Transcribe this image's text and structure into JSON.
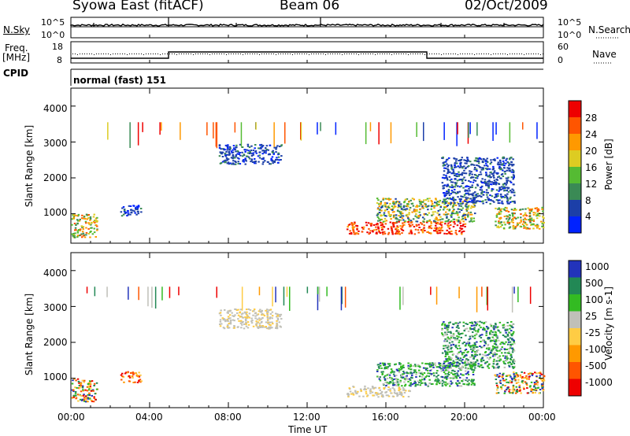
{
  "header": {
    "station": "Syowa East (fitACF)",
    "beam": "Beam 06",
    "date": "02/Oct/2009"
  },
  "noise_panel": {
    "left_label": "N.Sky",
    "right_label": "N.Search",
    "left_ticks": [
      "10^5",
      "10^0"
    ],
    "right_ticks": [
      "10^5",
      "10^0"
    ]
  },
  "freq_panel": {
    "left_label_line1": "Freq.",
    "left_label_line2": "[MHz]",
    "right_label": "Nave",
    "left_ticks": [
      "18",
      "8"
    ],
    "right_ticks": [
      "60",
      "0"
    ]
  },
  "cpid": {
    "label": "CPID",
    "mode": "normal (fast) 151"
  },
  "x_axis": {
    "label": "Time UT",
    "ticks": [
      "00:00",
      "04:00",
      "08:00",
      "12:00",
      "16:00",
      "20:00",
      "00:00"
    ]
  },
  "colors": {
    "power_scale": [
      "#0022ff",
      "#1c3fa8",
      "#3a8a55",
      "#55bb33",
      "#ddcc22",
      "#ff9900",
      "#ff5500",
      "#ee0000"
    ],
    "velocity_scale": [
      "#ee0000",
      "#ff5500",
      "#ff9900",
      "#ffcc44",
      "#c0c0b8",
      "#33bb22",
      "#228855",
      "#2233bb"
    ]
  },
  "chart_data": [
    {
      "type": "heatmap",
      "name": "power",
      "ylabel": "Slant Range [km]",
      "yticks": [
        "1000",
        "2000",
        "3000",
        "4000"
      ],
      "ylim": [
        180,
        4500
      ],
      "xlim": [
        0,
        24
      ],
      "colorbar": {
        "label": "Power [dB]",
        "ticks": [
          "4",
          "8",
          "12",
          "16",
          "20",
          "24",
          "28"
        ],
        "range": [
          0,
          32
        ]
      },
      "echo_regions": [
        {
          "t0": 0.0,
          "t1": 1.3,
          "r0": 350,
          "r1": 1000,
          "level": "mixed"
        },
        {
          "t0": 2.5,
          "t1": 3.6,
          "r0": 950,
          "r1": 1250,
          "level": "low"
        },
        {
          "t0": 7.5,
          "t1": 10.7,
          "r0": 2400,
          "r1": 2950,
          "level": "low"
        },
        {
          "t0": 14.0,
          "t1": 20.0,
          "r0": 450,
          "r1": 800,
          "level": "high"
        },
        {
          "t0": 15.5,
          "t1": 20.5,
          "r0": 800,
          "r1": 1450,
          "level": "mid"
        },
        {
          "t0": 18.8,
          "t1": 22.5,
          "r0": 1300,
          "r1": 2600,
          "level": "low"
        },
        {
          "t0": 21.5,
          "t1": 24.0,
          "r0": 600,
          "r1": 1200,
          "level": "mixed"
        }
      ]
    },
    {
      "type": "heatmap",
      "name": "velocity",
      "ylabel": "Slant Range [km]",
      "yticks": [
        "1000",
        "2000",
        "3000",
        "4000"
      ],
      "ylim": [
        180,
        4500
      ],
      "xlim": [
        0,
        24
      ],
      "colorbar": {
        "label": "Velocity [m s-1]",
        "ticks": [
          "-1000",
          "-500",
          "-100",
          "-25",
          "25",
          "100",
          "500",
          "1000"
        ],
        "range": [
          -1500,
          1500
        ]
      },
      "echo_regions": [
        {
          "t0": 0.0,
          "t1": 1.3,
          "r0": 350,
          "r1": 1000,
          "level": "mixed"
        },
        {
          "t0": 2.5,
          "t1": 3.6,
          "r0": 900,
          "r1": 1200,
          "level": "negative"
        },
        {
          "t0": 7.5,
          "t1": 10.7,
          "r0": 2400,
          "r1": 2950,
          "level": "ground"
        },
        {
          "t0": 14.0,
          "t1": 17.2,
          "r0": 500,
          "r1": 800,
          "level": "ground"
        },
        {
          "t0": 15.5,
          "t1": 20.5,
          "r0": 800,
          "r1": 1450,
          "level": "positive"
        },
        {
          "t0": 18.8,
          "t1": 22.5,
          "r0": 1300,
          "r1": 2600,
          "level": "positive"
        },
        {
          "t0": 21.5,
          "t1": 24.0,
          "r0": 600,
          "r1": 1200,
          "level": "mixed"
        }
      ]
    }
  ]
}
